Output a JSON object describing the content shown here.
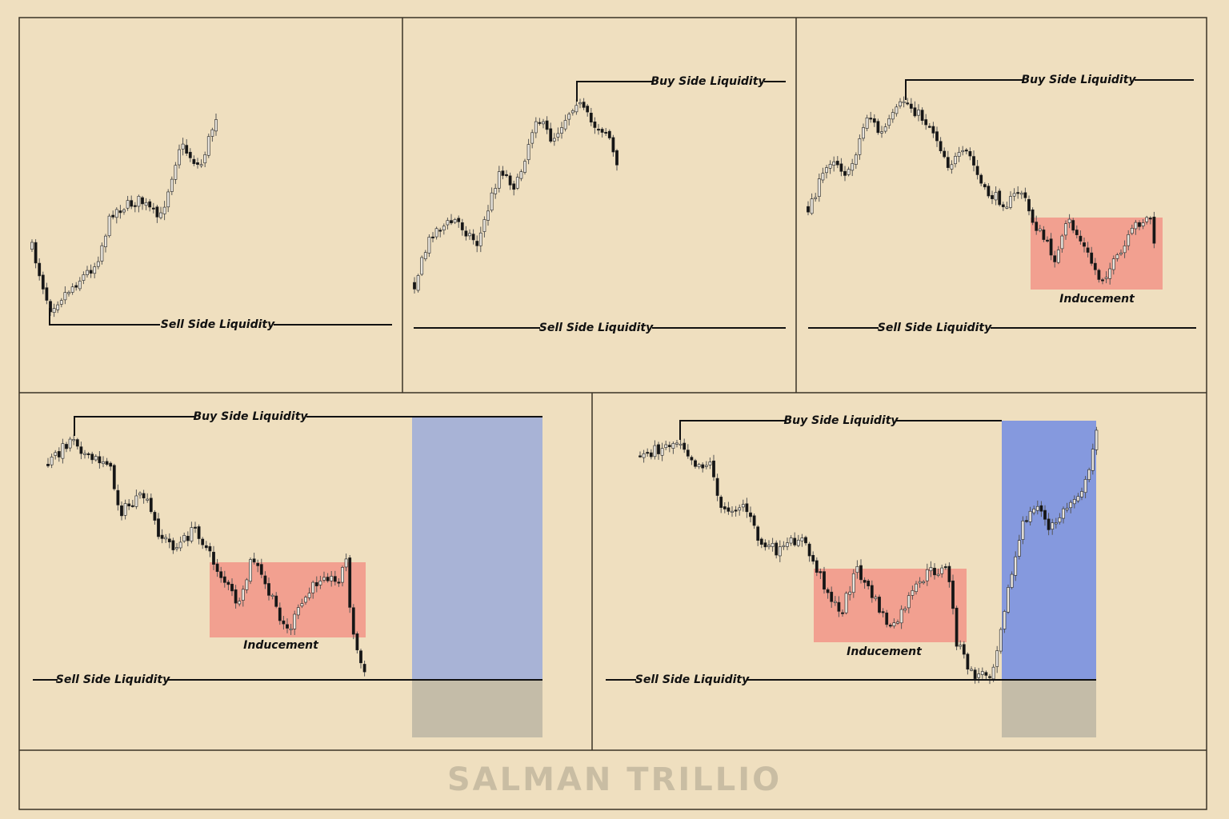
{
  "panels": [
    {
      "sell_label": "Sell Side Liquidity"
    },
    {
      "buy_label": "Buy Side Liquidity",
      "sell_label": "Sell Side Liquidity"
    },
    {
      "buy_label": "Buy Side Liquidity",
      "sell_label": "Sell Side Liquidity",
      "zone_label": "Inducement"
    },
    {
      "buy_label": "Buy Side Liquidity",
      "sell_label": "Sell Side Liquidity",
      "zone_label": "Inducement"
    },
    {
      "buy_label": "Buy Side Liquidity",
      "sell_label": "Sell Side Liquidity",
      "zone_label": "Inducement"
    }
  ],
  "watermark": "SALMAN TRILLIO"
}
